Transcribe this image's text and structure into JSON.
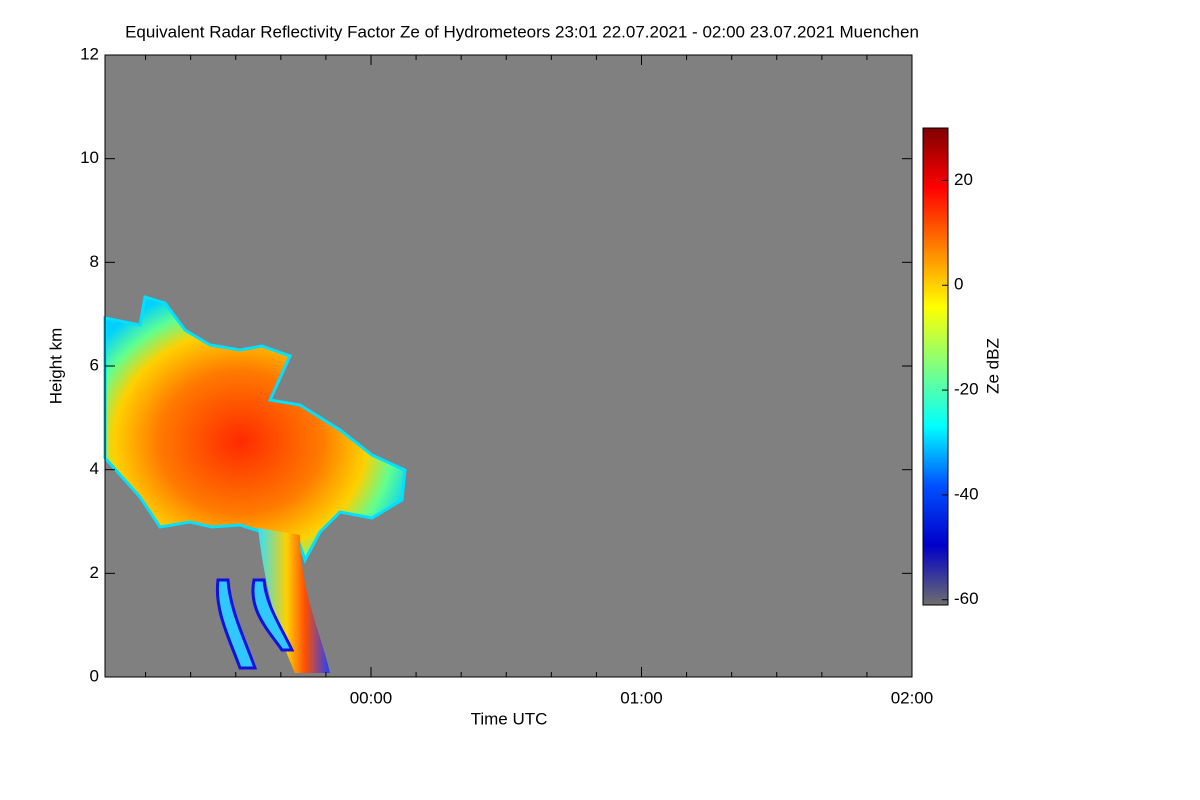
{
  "chart_data": {
    "type": "heatmap",
    "title": "Equivalent Radar Reflectivity Factor Ze of Hydrometeors   23:01 22.07.2021 - 02:00 23.07.2021 Muenchen",
    "x_label": "Time UTC",
    "y_label": "Height km",
    "xlim": [
      -59,
      120
    ],
    "xticks": [
      {
        "value": 0,
        "label": "00:00"
      },
      {
        "value": 60,
        "label": "01:00"
      },
      {
        "value": 120,
        "label": "02:00"
      }
    ],
    "xminorticks": [
      -50,
      -40,
      -30,
      -20,
      -10,
      10,
      20,
      30,
      40,
      50,
      70,
      80,
      90,
      100,
      110
    ],
    "ylim": [
      0,
      12
    ],
    "yticks": [
      0,
      2,
      4,
      6,
      8,
      10,
      12
    ],
    "colorbar": {
      "label": "Ze dBZ",
      "lim": [
        -61,
        30
      ],
      "ticks": [
        -60,
        -40,
        -20,
        0,
        20
      ],
      "colors": [
        "#6e6e6e",
        "#0000c8",
        "#0050ff",
        "#00ffff",
        "#80ff80",
        "#ffff00",
        "#ff8000",
        "#ff0000",
        "#800000"
      ]
    },
    "background": "#808080"
  }
}
